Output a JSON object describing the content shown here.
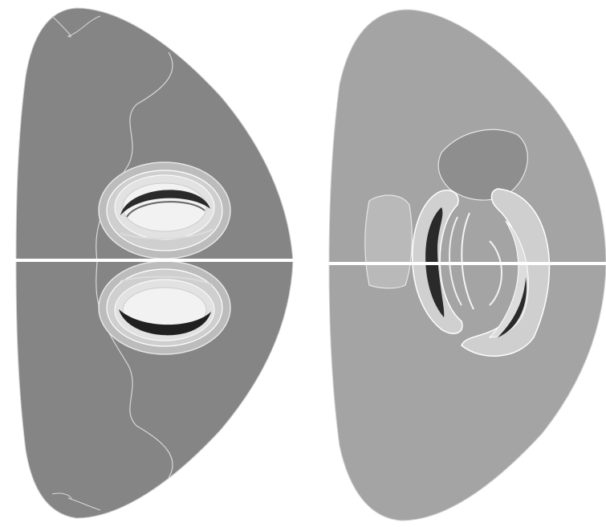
{
  "figure": {
    "panels": [
      {
        "id": "left",
        "description_free": true
      },
      {
        "id": "right",
        "description_free": true
      }
    ],
    "colors": {
      "background": "#ffffff",
      "left_body": "#858585",
      "right_body": "#a4a4a4",
      "contour_light": "#e6e6e6",
      "contour_dark": "#2a2a2a",
      "midplane_line": "#ffffff"
    }
  }
}
